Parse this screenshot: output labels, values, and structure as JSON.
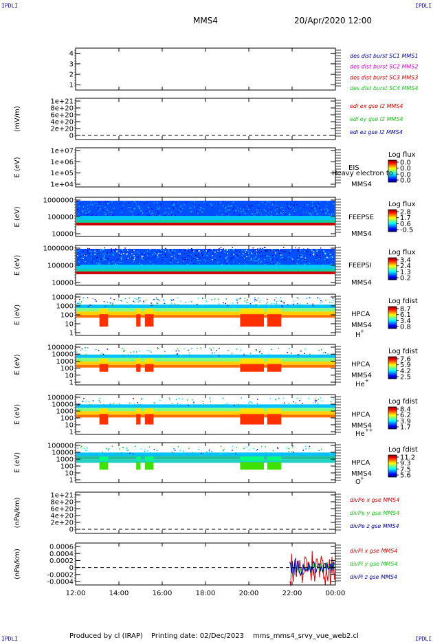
{
  "header": {
    "corner_tl": "IPDLI",
    "corner_tr": "IPDLI",
    "corner_bl": "IPDLI",
    "corner_br": "IPDLI",
    "mission": "MMS4",
    "datetime": "20/Apr/2020 12:00"
  },
  "footer": {
    "produced": "Produced by cl (IRAP)",
    "printing": "Printing date: 02/Dec/2023",
    "script": "mms_mms4_srvy_vue_web2.cl"
  },
  "colors": {
    "blue": "#0000a0",
    "magenta": "#d000d0",
    "red": "#d00000",
    "green": "#20c020"
  },
  "chart_data": [
    {
      "type": "line",
      "yticks": [
        "1",
        "2",
        "3",
        "4"
      ],
      "ylim": [
        0.5,
        4.5
      ],
      "legend": [
        {
          "label": "des dist burst SC1 MMS1",
          "color": "#0000a0"
        },
        {
          "label": "des dist burst SC2 MMS2",
          "color": "#d000d0"
        },
        {
          "label": "des dist burst SC3 MMS3",
          "color": "#d00000"
        },
        {
          "label": "des dist burst SC4 MMS4",
          "color": "#20c020"
        }
      ]
    },
    {
      "type": "line",
      "ylabel": "(mV/m)",
      "yticks": [
        "1e+21",
        "8e+20",
        "6e+20",
        "4e+20",
        "2e+20",
        "0"
      ],
      "zero_dashed": true,
      "legend": [
        {
          "label": "edi ex gse l2 MMS4",
          "color": "#d00000"
        },
        {
          "label": "edi ey gse l2 MMS4",
          "color": "#20c020"
        },
        {
          "label": "edi ez gse l2 MMS4",
          "color": "#0000a0"
        }
      ]
    },
    {
      "type": "heatmap",
      "ylabel": "E (eV)",
      "yticks": [
        "1e+07",
        "1e+06",
        "1e+05",
        "1e+04"
      ],
      "instrument": "EIS",
      "overlay": "Heavy electron to",
      "sc": "MMS4",
      "colorbar_title": "Log flux",
      "colorbar_ticks": [
        "0.0",
        "0.0",
        "0.0",
        "0.0"
      ]
    },
    {
      "type": "heatmap",
      "ylabel": "E (eV)",
      "yticks": [
        "1000000",
        "100000",
        "10000"
      ],
      "instrument": "FEEPSE",
      "sc": "MMS4",
      "colorbar_title": "Log flux",
      "colorbar_ticks": [
        "2.8",
        "1.7",
        "0.6",
        "-0.5"
      ]
    },
    {
      "type": "heatmap",
      "ylabel": "E (eV)",
      "yticks": [
        "1000000",
        "100000",
        "10000"
      ],
      "instrument": "FEEPSI",
      "sc": "MMS4",
      "colorbar_title": "Log flux",
      "colorbar_ticks": [
        "3.4",
        "2.4",
        "1.3",
        "0.2"
      ]
    },
    {
      "type": "heatmap",
      "ylabel": "E (eV)",
      "yticks": [
        "10000",
        "1000",
        "100",
        "10",
        "1"
      ],
      "instrument": "HPCA",
      "sc": "MMS4",
      "species": "H",
      "species_sup": "+",
      "colorbar_title": "Log fdist",
      "colorbar_ticks": [
        "8.7",
        "6.1",
        "3.4",
        "0.8"
      ]
    },
    {
      "type": "heatmap",
      "ylabel": "E (eV)",
      "yticks": [
        "100000",
        "10000",
        "1000",
        "100",
        "10",
        "1"
      ],
      "instrument": "HPCA",
      "sc": "MMS4",
      "species": "He",
      "species_sup": "+",
      "colorbar_title": "Log fdist",
      "colorbar_ticks": [
        "7.6",
        "5.9",
        "4.2",
        "2.5"
      ]
    },
    {
      "type": "heatmap",
      "ylabel": "E (eV)",
      "yticks": [
        "100000",
        "10000",
        "1000",
        "100",
        "10",
        "1"
      ],
      "instrument": "HPCA",
      "sc": "MMS4",
      "species": "He",
      "species_sup": "++",
      "colorbar_title": "Log fdist",
      "colorbar_ticks": [
        "8.4",
        "6.2",
        "3.9",
        "1.7"
      ]
    },
    {
      "type": "heatmap",
      "ylabel": "E (eV)",
      "yticks": [
        "100000",
        "10000",
        "1000",
        "100",
        "10",
        "1"
      ],
      "instrument": "HPCA",
      "sc": "MMS4",
      "species": "O",
      "species_sup": "+",
      "colorbar_title": "Log fdist",
      "colorbar_ticks": [
        "11.2",
        "9.3",
        "7.5",
        "5.6"
      ]
    },
    {
      "type": "line",
      "ylabel": "(nPa/km)",
      "yticks": [
        "1e+21",
        "8e+20",
        "6e+20",
        "4e+20",
        "2e+20",
        "0"
      ],
      "zero_dashed": true,
      "legend": [
        {
          "label": "divPe x gse MMS4",
          "color": "#d00000"
        },
        {
          "label": "divPe y gse MMS4",
          "color": "#20c020"
        },
        {
          "label": "divPe z gse MMS4",
          "color": "#0000a0"
        }
      ]
    },
    {
      "type": "line",
      "ylabel": "(nPa/km)",
      "yticks": [
        "0.0006",
        "0.0004",
        "0.0002",
        "0",
        "-0.0002",
        "-0.0004"
      ],
      "ylim": [
        -0.0005,
        0.0007
      ],
      "zero_dashed": true,
      "data_start_hour": 21.9,
      "legend": [
        {
          "label": "divPi x gse MMS4",
          "color": "#d00000"
        },
        {
          "label": "divPi y gse MMS4",
          "color": "#20c020"
        },
        {
          "label": "divPi z gse MMS4",
          "color": "#0000a0"
        }
      ]
    }
  ],
  "xaxis": {
    "ticks": [
      "12:00",
      "14:00",
      "16:00",
      "18:00",
      "20:00",
      "22:00",
      "00:00"
    ],
    "range_hours": [
      12,
      24
    ]
  }
}
